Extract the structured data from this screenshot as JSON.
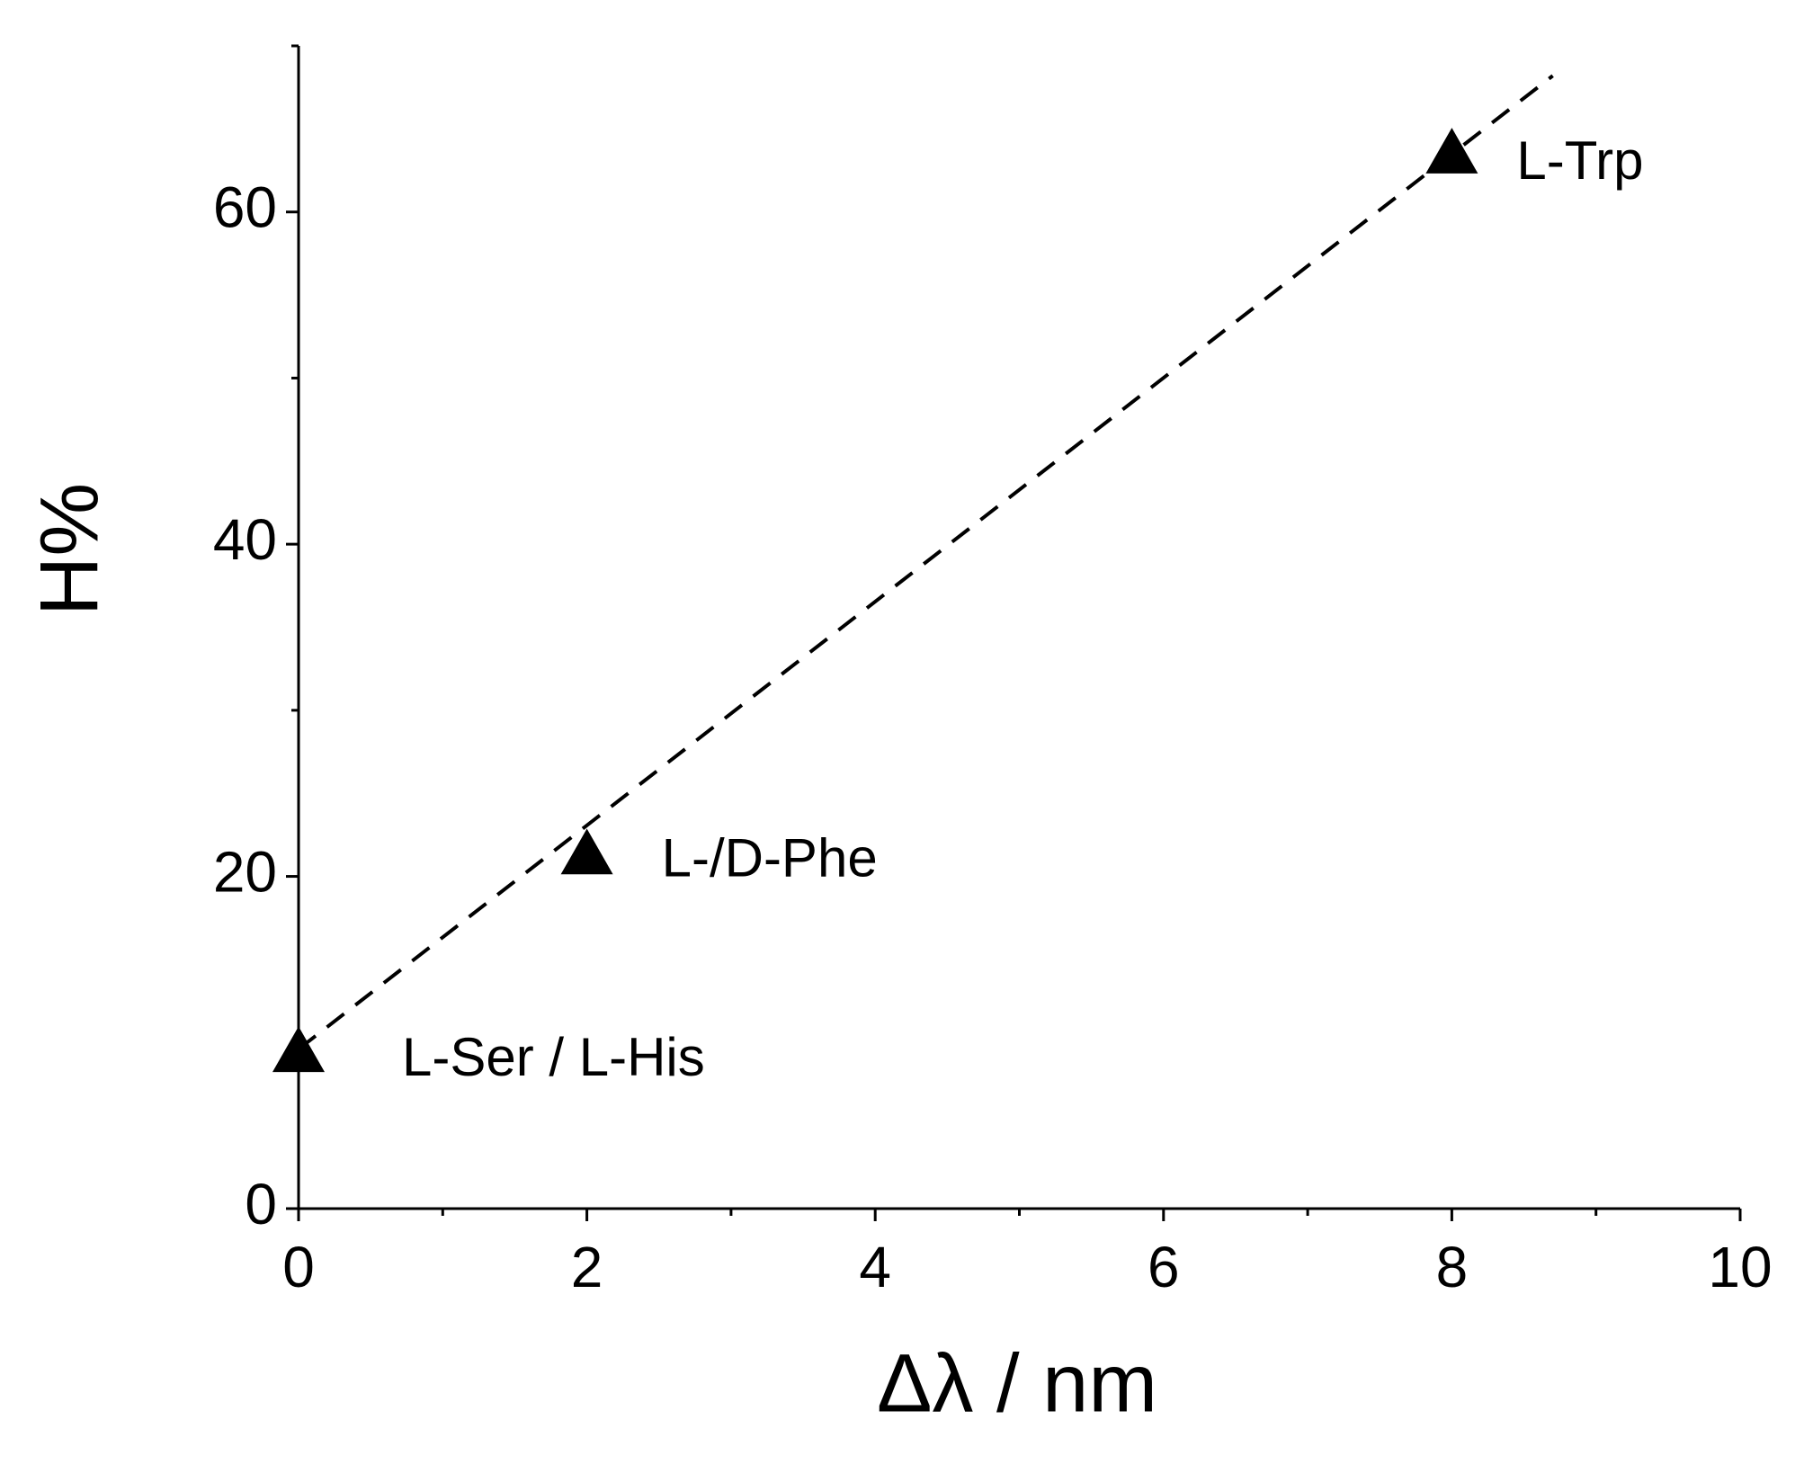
{
  "chart_data": {
    "type": "scatter",
    "x_label": "Δλ / nm",
    "y_label": "H%",
    "xlim": [
      0,
      10
    ],
    "xticks": [
      0,
      2,
      4,
      6,
      8,
      10
    ],
    "xminorticks": [
      1,
      3,
      5,
      7,
      9
    ],
    "ylim": [
      0,
      70
    ],
    "yticks": [
      0,
      20,
      40,
      60
    ],
    "yminorticks": [
      10,
      30,
      50,
      70
    ],
    "series": [
      {
        "type": "scatter",
        "marker": "triangle",
        "color": "#000000",
        "x": [
          0,
          2,
          8
        ],
        "values": [
          9.4,
          21.3,
          63.5
        ],
        "labels": [
          "L-Ser / L-His",
          "L-/D-Phe",
          "L-Trp"
        ]
      },
      {
        "type": "line",
        "dash": true,
        "color": "#000000",
        "x": [
          0,
          8.7
        ],
        "values": [
          9.6,
          68.2
        ]
      }
    ]
  }
}
